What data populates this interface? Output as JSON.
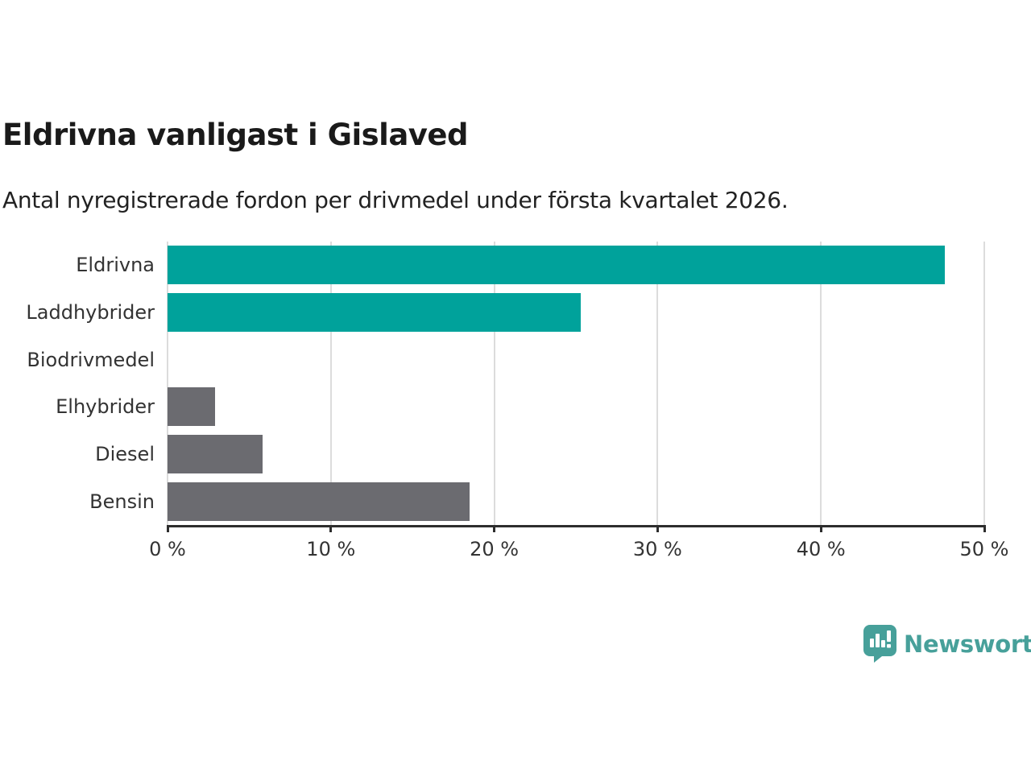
{
  "header": {
    "title": "Eldrivna vanligast i Gislaved",
    "subtitle": "Antal nyregistrerade fordon per drivmedel under första kvartalet 2026."
  },
  "chart_data": {
    "type": "bar",
    "orientation": "horizontal",
    "title": "Eldrivna vanligast i Gislaved",
    "subtitle": "Antal nyregistrerade fordon per drivmedel under första kvartalet 2026.",
    "categories": [
      "Eldrivna",
      "Laddhybrider",
      "Biodrivmedel",
      "Elhybrider",
      "Diesel",
      "Bensin"
    ],
    "values": [
      47.6,
      25.3,
      0,
      2.9,
      5.8,
      18.5
    ],
    "unit": "%",
    "bar_color_keys": [
      "teal",
      "teal",
      "gray",
      "gray",
      "gray",
      "gray"
    ],
    "xlim": [
      0,
      50
    ],
    "x_ticks": [
      0,
      10,
      20,
      30,
      40,
      50
    ],
    "x_tick_labels": [
      "0 %",
      "10 %",
      "20 %",
      "30 %",
      "40 %",
      "50 %"
    ],
    "grid": true,
    "legend": "none",
    "xlabel": "",
    "ylabel": ""
  },
  "colors": {
    "teal": "#00a29b",
    "gray": "#6b6b70",
    "grid": "#dcdcdc",
    "axis": "#2d2d2d",
    "logo_teal": "#47a09a"
  },
  "footer": {
    "brand": "Newsworthy"
  }
}
